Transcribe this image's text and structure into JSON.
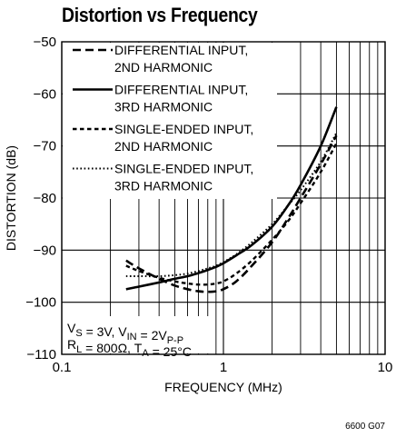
{
  "title": "Distortion vs Frequency",
  "figure_id": "6600 G07",
  "conditions": {
    "line1": [
      {
        "t": "V"
      },
      {
        "t": "S",
        "sub": true
      },
      {
        "t": " = 3V, V"
      },
      {
        "t": "IN",
        "sub": true
      },
      {
        "t": " = 2V"
      },
      {
        "t": "P-P",
        "sub": true
      }
    ],
    "line2": [
      {
        "t": "R"
      },
      {
        "t": "L",
        "sub": true
      },
      {
        "t": " = 800Ω, T"
      },
      {
        "t": "A",
        "sub": true
      },
      {
        "t": " = 25°C"
      }
    ]
  },
  "colors": {
    "line": "#000000",
    "grid": "#000000",
    "background": "#ffffff"
  },
  "chart_data": {
    "type": "line",
    "title": "Distortion vs Frequency",
    "xlabel": "FREQUENCY (MHz)",
    "ylabel": "DISTORTION (dB)",
    "xscale": "log",
    "xlim": [
      0.1,
      10
    ],
    "ylim": [
      -110,
      -50
    ],
    "xticks": [
      0.1,
      1,
      10
    ],
    "xtick_labels": [
      "0.1",
      "1",
      "10"
    ],
    "yticks": [
      -110,
      -100,
      -90,
      -80,
      -70,
      -60,
      -50
    ],
    "ytick_labels": [
      "−110",
      "−100",
      "−90",
      "−80",
      "−70",
      "−60",
      "−50"
    ],
    "grid": true,
    "legend_position": "top-left",
    "series": [
      {
        "name_lines": [
          "DIFFERENTIAL INPUT,",
          "2ND HARMONIC"
        ],
        "style": "dashed",
        "x": [
          0.25,
          0.3,
          0.4,
          0.5,
          0.6,
          0.7,
          0.8,
          0.9,
          1.0,
          1.2,
          1.5,
          2,
          2.5,
          3,
          4,
          5
        ],
        "y": [
          -92.0,
          -93.5,
          -95.5,
          -96.8,
          -97.5,
          -97.9,
          -98.0,
          -97.9,
          -97.5,
          -96.0,
          -93.0,
          -88.5,
          -84.0,
          -80.0,
          -73.5,
          -68.0
        ]
      },
      {
        "name_lines": [
          "DIFFERENTIAL INPUT,",
          "3RD HARMONIC"
        ],
        "style": "solid",
        "x": [
          0.25,
          0.3,
          0.4,
          0.5,
          0.6,
          0.7,
          0.8,
          0.9,
          1.0,
          1.2,
          1.5,
          2,
          2.5,
          3,
          4,
          5
        ],
        "y": [
          -97.5,
          -97.0,
          -96.2,
          -95.5,
          -95.0,
          -94.4,
          -93.8,
          -93.2,
          -92.5,
          -91.0,
          -89.0,
          -85.5,
          -81.5,
          -77.5,
          -70.0,
          -62.5
        ]
      },
      {
        "name_lines": [
          "SINGLE-ENDED INPUT,",
          "2ND HARMONIC"
        ],
        "style": "short-dashed",
        "x": [
          0.25,
          0.3,
          0.4,
          0.5,
          0.6,
          0.7,
          0.8,
          0.9,
          1.0,
          1.2,
          1.5,
          2,
          2.5,
          3,
          4,
          5
        ],
        "y": [
          -93.0,
          -94.0,
          -95.3,
          -96.0,
          -96.4,
          -96.6,
          -96.6,
          -96.4,
          -96.0,
          -94.5,
          -92.0,
          -88.0,
          -84.5,
          -81.0,
          -75.0,
          -69.5
        ]
      },
      {
        "name_lines": [
          "SINGLE-ENDED INPUT,",
          "3RD HARMONIC"
        ],
        "style": "dotted",
        "x": [
          0.25,
          0.3,
          0.4,
          0.5,
          0.6,
          0.7,
          0.8,
          0.9,
          1.0,
          1.2,
          1.5,
          2,
          2.5,
          3,
          4,
          5
        ],
        "y": [
          -95.0,
          -95.0,
          -95.0,
          -94.8,
          -94.5,
          -94.0,
          -93.5,
          -93.0,
          -92.3,
          -90.8,
          -88.5,
          -85.0,
          -81.5,
          -78.5,
          -73.0,
          -67.5
        ]
      }
    ]
  }
}
